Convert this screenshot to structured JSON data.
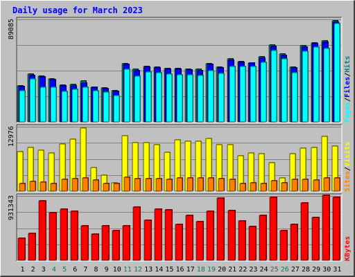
{
  "chart_data": {
    "type": "bar",
    "title": "Daily usage for March 2023",
    "categories": [
      "1",
      "2",
      "3",
      "4",
      "5",
      "6",
      "7",
      "8",
      "9",
      "10",
      "11",
      "12",
      "13",
      "14",
      "15",
      "16",
      "17",
      "18",
      "19",
      "20",
      "21",
      "22",
      "23",
      "24",
      "25",
      "26",
      "27",
      "28",
      "29",
      "30",
      "31"
    ],
    "weekend_days": [
      "4",
      "5",
      "11",
      "12",
      "18",
      "19",
      "25",
      "26"
    ],
    "panels": [
      {
        "id": "hits_files_pages",
        "ymax_label": "89085",
        "ylim": [
          0,
          89085
        ],
        "legend": [
          "Pages",
          "Files",
          "Hits"
        ],
        "series": [
          {
            "name": "Hits",
            "color": "#008080",
            "values": [
              31200,
              41500,
              39600,
              37600,
              31800,
              32500,
              35300,
              30300,
              29300,
              27000,
              50500,
              45700,
              48000,
              47500,
              46500,
              46500,
              46000,
              45500,
              50300,
              47400,
              54500,
              52600,
              51400,
              56500,
              67000,
              58700,
              47700,
              66000,
              68800,
              70200,
              88000
            ]
          },
          {
            "name": "Files",
            "color": "#0000ff",
            "values": [
              30900,
              40600,
              39000,
              36900,
              31300,
              31600,
              33500,
              29900,
              29000,
              26400,
              49900,
              44600,
              47400,
              46800,
              45800,
              45700,
              45200,
              44800,
              49800,
              46900,
              53800,
              51900,
              50900,
              55600,
              65700,
              57800,
              47000,
              64800,
              67900,
              69300,
              86500
            ]
          },
          {
            "name": "Pages",
            "color": "#00ffff",
            "values": [
              27000,
              37500,
              30300,
              30100,
              26200,
              28500,
              30100,
              26800,
              25600,
              23000,
              46000,
              40000,
              43500,
              42800,
              41500,
              41000,
              40800,
              40500,
              44800,
              42300,
              48400,
              48200,
              48200,
              51800,
              61700,
              55000,
              42500,
              61500,
              64800,
              64000,
              85300
            ]
          }
        ]
      },
      {
        "id": "visits_sites",
        "ymax_label": "12976",
        "ylim": [
          0,
          12976
        ],
        "legend": [
          "Sites",
          "Visits"
        ],
        "series": [
          {
            "name": "Visits",
            "color": "#ffff00",
            "values": [
              8000,
              8800,
              8200,
              7700,
              9500,
              10500,
              12700,
              4800,
              3200,
              1700,
              11100,
              9800,
              9700,
              9300,
              7800,
              10300,
              10100,
              10000,
              10600,
              9400,
              9300,
              7100,
              7700,
              7500,
              5700,
              2600,
              7500,
              8700,
              8800,
              11000,
              9100
            ]
          },
          {
            "name": "Sites",
            "color": "#ff8000",
            "values": [
              1500,
              2000,
              1800,
              1600,
              2400,
              2500,
              2700,
              2200,
              1500,
              1500,
              2800,
              2500,
              2500,
              2500,
              2400,
              2600,
              2600,
              2600,
              2600,
              2500,
              2400,
              1600,
              1700,
              1600,
              2100,
              1700,
              2400,
              2400,
              2200,
              2600,
              2600
            ]
          }
        ]
      },
      {
        "id": "kbytes",
        "ymax_label": "931343",
        "ylim": [
          0,
          931343
        ],
        "legend": [
          "KBytes"
        ],
        "series": [
          {
            "name": "KBytes",
            "color": "#ff0000",
            "values": [
              320000,
              394000,
              860000,
              690000,
              740000,
              708000,
              500000,
              380000,
              500000,
              427000,
              500000,
              773000,
              578000,
              742000,
              732000,
              516000,
              652000,
              563000,
              708000,
              900000,
              725000,
              567000,
              488000,
              652000,
              916000,
              430000,
              517000,
              832000,
              622000,
              937000,
              915000
            ]
          }
        ]
      }
    ]
  }
}
